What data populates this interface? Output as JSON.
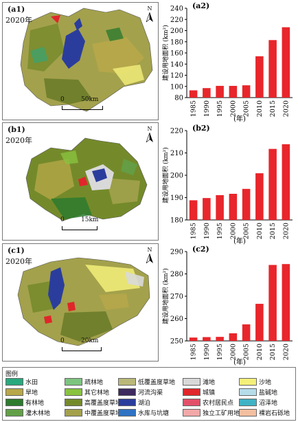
{
  "panels": [
    {
      "map_label": "(a1)",
      "map_year": "2020年",
      "scale_start": "0",
      "scale_end": "50km",
      "chart_label": "(a2)"
    },
    {
      "map_label": "(b1)",
      "map_year": "2020年",
      "scale_start": "0",
      "scale_end": "15km",
      "chart_label": "(b2)"
    },
    {
      "map_label": "(c1)",
      "map_year": "2020年",
      "scale_start": "0",
      "scale_end": "20km",
      "chart_label": "(c2)"
    }
  ],
  "north_label": "N",
  "chart_data": [
    {
      "type": "bar",
      "title": "(a2)",
      "xlabel": "(年)",
      "ylabel": "建设用地面积 (km²)",
      "categories": [
        "1985",
        "1990",
        "1995",
        "2000",
        "2005",
        "2010",
        "2015",
        "2020"
      ],
      "values": [
        93,
        97,
        101,
        101,
        102,
        154,
        183,
        206
      ],
      "ylim": [
        80,
        240
      ],
      "yticks": [
        80,
        100,
        120,
        140,
        160,
        180,
        200,
        220,
        240
      ],
      "grid": false,
      "bar_color": "#e8262b"
    },
    {
      "type": "bar",
      "title": "(b2)",
      "xlabel": "(年)",
      "ylabel": "建设用地面积 (km²)",
      "categories": [
        "1985",
        "1990",
        "1995",
        "2000",
        "2005",
        "2010",
        "2015",
        "2020"
      ],
      "values": [
        188.8,
        189.8,
        191.1,
        191.7,
        193.9,
        200.9,
        211.8,
        213.9
      ],
      "ylim": [
        180,
        220
      ],
      "yticks": [
        180,
        190,
        200,
        210,
        220
      ],
      "grid": false,
      "bar_color": "#e8262b"
    },
    {
      "type": "bar",
      "title": "(c2)",
      "xlabel": "(年)",
      "ylabel": "建设用地面积 (km²)",
      "categories": [
        "1985",
        "1990",
        "1995",
        "2000",
        "2005",
        "2010",
        "2015",
        "2020"
      ],
      "values": [
        251.5,
        251.7,
        251.8,
        253.4,
        257.4,
        266.6,
        284,
        284.4
      ],
      "ylim": [
        250,
        290
      ],
      "yticks": [
        250,
        260,
        270,
        280,
        290
      ],
      "grid": false,
      "bar_color": "#e8262b"
    }
  ],
  "legend": {
    "title": "图例",
    "items": [
      {
        "label": "水田",
        "color": "#2aa87e"
      },
      {
        "label": "疏林地",
        "color": "#7cc47f"
      },
      {
        "label": "低覆盖度草地",
        "color": "#b9b879"
      },
      {
        "label": "滩地",
        "color": "#d9d9d9"
      },
      {
        "label": "沙地",
        "color": "#f4f07a"
      },
      {
        "label": "旱地",
        "color": "#b8a84a"
      },
      {
        "label": "其它林地",
        "color": "#88c23f"
      },
      {
        "label": "河流沟渠",
        "color": "#3d2a5e"
      },
      {
        "label": "城镇",
        "color": "#e0262a"
      },
      {
        "label": "盐碱地",
        "color": "#b6dcea"
      },
      {
        "label": "有林地",
        "color": "#2d7a2e"
      },
      {
        "label": "高覆盖度草地",
        "color": "#748a2a"
      },
      {
        "label": "湖泊",
        "color": "#2b3d9c"
      },
      {
        "label": "农村居民点",
        "color": "#e2506a"
      },
      {
        "label": "沼泽地",
        "color": "#3fb3c5"
      },
      {
        "label": "灌木林地",
        "color": "#62a048"
      },
      {
        "label": "中覆盖度草地",
        "color": "#a3a14c"
      },
      {
        "label": "水库与坑塘",
        "color": "#2f73c4"
      },
      {
        "label": "独立工矿用地",
        "color": "#f2a8a8"
      },
      {
        "label": "裸岩石砾地",
        "color": "#f2bfa0"
      }
    ]
  }
}
